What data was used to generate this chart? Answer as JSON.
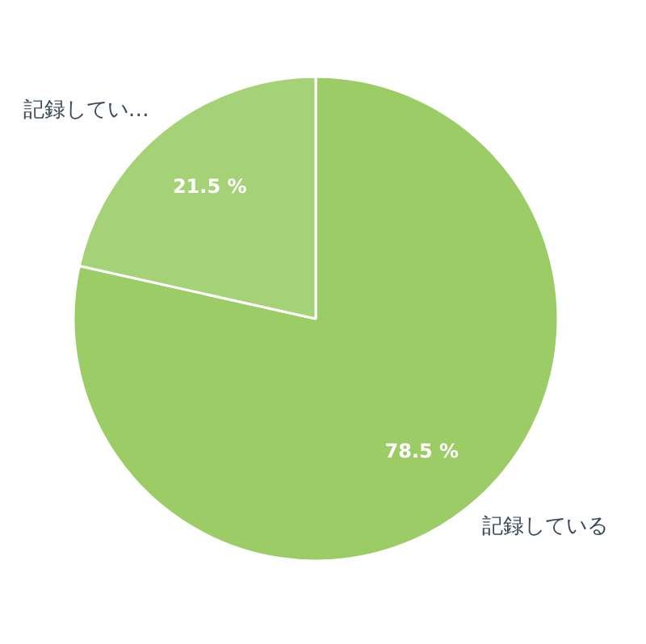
{
  "chart_data": {
    "type": "pie",
    "categories": [
      "記録している",
      "記録してい…"
    ],
    "values": [
      78.5,
      21.5
    ],
    "colors": [
      "#9ccc65",
      "#a5d276"
    ],
    "value_labels": [
      "78.5 %",
      "21.5 %"
    ]
  }
}
